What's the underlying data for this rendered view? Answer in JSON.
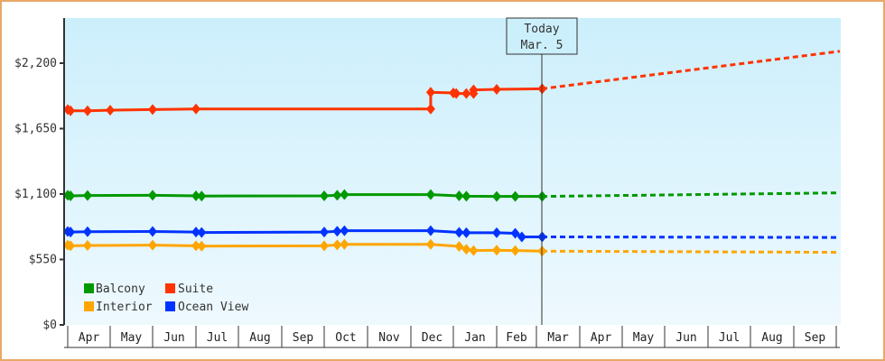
{
  "chart_data": {
    "type": "line",
    "title": "",
    "xlabel": "",
    "ylabel": "",
    "ylim": [
      0,
      2500
    ],
    "y_ticks": [
      "$0",
      "$550",
      "$1,100",
      "$1,650",
      "$2,200"
    ],
    "y_tick_values": [
      0,
      550,
      1100,
      1650,
      2200
    ],
    "x_months": [
      "Apr",
      "May",
      "Jun",
      "Jul",
      "Aug",
      "Sep",
      "Oct",
      "Nov",
      "Dec",
      "Jan",
      "Feb",
      "Mar",
      "Apr",
      "May",
      "Jun",
      "Jul",
      "Aug",
      "Sep"
    ],
    "today_marker": {
      "line1": "Today",
      "line2": "Mar. 5"
    },
    "grid": false,
    "legend_position": "lower-left",
    "series": [
      {
        "name": "Suite",
        "color": "#ff3300",
        "historical": [
          [
            "Apr 1",
            1810
          ],
          [
            "Apr 3",
            1800
          ],
          [
            "Apr 15",
            1800
          ],
          [
            "May 1",
            1805
          ],
          [
            "Jun 1",
            1810
          ],
          [
            "Jul 1",
            1815
          ],
          [
            "Dec 15",
            1815
          ],
          [
            "Dec 15",
            1955
          ],
          [
            "Jan 1",
            1950
          ],
          [
            "Jan 3",
            1945
          ],
          [
            "Jan 10",
            1945
          ],
          [
            "Jan 15",
            1945
          ],
          [
            "Jan 15",
            1975
          ],
          [
            "Feb 1",
            1980
          ],
          [
            "Mar 5",
            1985
          ]
        ],
        "forecast": [
          [
            "Mar 5",
            1985
          ],
          [
            "Sep 30",
            2300
          ]
        ]
      },
      {
        "name": "Balcony",
        "color": "#009900",
        "historical": [
          [
            "Apr 1",
            1090
          ],
          [
            "Apr 3",
            1085
          ],
          [
            "Apr 15",
            1088
          ],
          [
            "Jun 1",
            1090
          ],
          [
            "Jul 1",
            1085
          ],
          [
            "Jul 5",
            1083
          ],
          [
            "Oct 1",
            1085
          ],
          [
            "Oct 10",
            1090
          ],
          [
            "Oct 15",
            1095
          ],
          [
            "Dec 15",
            1095
          ],
          [
            "Jan 5",
            1085
          ],
          [
            "Jan 10",
            1082
          ],
          [
            "Feb 1",
            1080
          ],
          [
            "Feb 15",
            1080
          ],
          [
            "Mar 5",
            1080
          ]
        ],
        "forecast": [
          [
            "Mar 5",
            1080
          ],
          [
            "Sep 30",
            1110
          ]
        ]
      },
      {
        "name": "Ocean View",
        "color": "#0033ff",
        "historical": [
          [
            "Apr 1",
            785
          ],
          [
            "Apr 3",
            780
          ],
          [
            "Apr 15",
            783
          ],
          [
            "Jun 1",
            785
          ],
          [
            "Jul 1",
            780
          ],
          [
            "Jul 5",
            777
          ],
          [
            "Oct 1",
            780
          ],
          [
            "Oct 10",
            787
          ],
          [
            "Oct 15",
            792
          ],
          [
            "Dec 15",
            792
          ],
          [
            "Jan 5",
            778
          ],
          [
            "Jan 10",
            775
          ],
          [
            "Feb 1",
            775
          ],
          [
            "Feb 15",
            770
          ],
          [
            "Feb 20",
            740
          ],
          [
            "Mar 5",
            740
          ]
        ],
        "forecast": [
          [
            "Mar 5",
            740
          ],
          [
            "Sep 30",
            735
          ]
        ]
      },
      {
        "name": "Interior",
        "color": "#ffa500",
        "historical": [
          [
            "Apr 1",
            670
          ],
          [
            "Apr 3",
            665
          ],
          [
            "Apr 15",
            668
          ],
          [
            "Jun 1",
            670
          ],
          [
            "Jul 1",
            665
          ],
          [
            "Jul 5",
            662
          ],
          [
            "Oct 1",
            665
          ],
          [
            "Oct 10",
            672
          ],
          [
            "Oct 15",
            677
          ],
          [
            "Dec 15",
            677
          ],
          [
            "Jan 5",
            660
          ],
          [
            "Jan 10",
            635
          ],
          [
            "Jan 15",
            625
          ],
          [
            "Feb 1",
            628
          ],
          [
            "Feb 15",
            625
          ],
          [
            "Mar 5",
            620
          ]
        ],
        "forecast": [
          [
            "Mar 5",
            620
          ],
          [
            "Sep 30",
            610
          ]
        ]
      }
    ]
  },
  "legend": {
    "items": [
      {
        "label": "Balcony",
        "color": "#009900"
      },
      {
        "label": "Suite",
        "color": "#ff3300"
      },
      {
        "label": "Interior",
        "color": "#ffa500"
      },
      {
        "label": "Ocean View",
        "color": "#0033ff"
      }
    ]
  }
}
